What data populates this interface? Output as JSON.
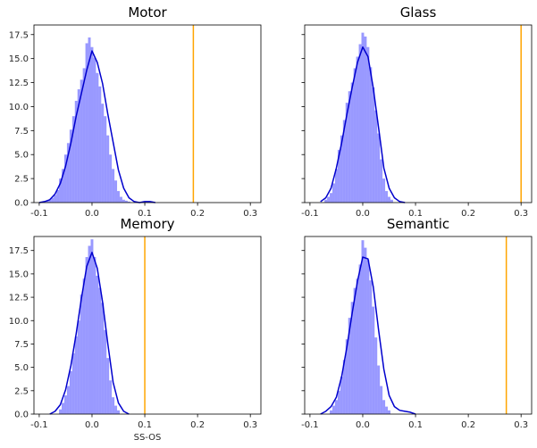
{
  "figure": {
    "colors": {
      "hist": "#0000ff",
      "kde": "#0000cd",
      "vline": "#ffa500"
    }
  },
  "chart_data": [
    {
      "type": "histogram+kde",
      "title": "Motor",
      "xlabel": "",
      "xlim": [
        -0.11,
        0.32
      ],
      "ylim": [
        0,
        18.5
      ],
      "xticks": [
        -0.1,
        0.0,
        0.1,
        0.2,
        0.3
      ],
      "xtick_labels": [
        "-0.1",
        "0.0",
        "0.1",
        "0.2",
        "0.3"
      ],
      "yticks": [
        0,
        2.5,
        5.0,
        7.5,
        10.0,
        12.5,
        15.0,
        17.5
      ],
      "ytick_labels": [
        "0.0",
        "2.5",
        "5.0",
        "7.5",
        "10.0",
        "12.5",
        "15.0",
        "17.5"
      ],
      "show_ytick_labels": true,
      "vline": 0.192,
      "bin_edges": [
        -0.0875,
        -0.0825,
        -0.0775,
        -0.0725,
        -0.0675,
        -0.0625,
        -0.0575,
        -0.0525,
        -0.0475,
        -0.0425,
        -0.0375,
        -0.0325,
        -0.0275,
        -0.0225,
        -0.0175,
        -0.0125,
        -0.0075,
        -0.0025,
        0.0025,
        0.0075,
        0.0125,
        0.0175,
        0.0225,
        0.0275,
        0.0325,
        0.0375,
        0.0425,
        0.0475,
        0.0525,
        0.0575,
        0.0625,
        0.0675,
        0.0725
      ],
      "hist_values": [
        0.2,
        0.3,
        0.5,
        0.8,
        1.3,
        2.5,
        3.5,
        5.0,
        6.2,
        7.6,
        9.0,
        10.6,
        11.8,
        12.8,
        14.0,
        16.6,
        17.2,
        16.2,
        15.1,
        13.5,
        12.1,
        10.3,
        9.0,
        7.0,
        5.0,
        3.5,
        2.3,
        1.2,
        0.6,
        0.3,
        0.2,
        0.1
      ],
      "kde": {
        "x": [
          -0.1,
          -0.09,
          -0.08,
          -0.07,
          -0.06,
          -0.05,
          -0.04,
          -0.03,
          -0.02,
          -0.01,
          0.0,
          0.01,
          0.02,
          0.03,
          0.04,
          0.05,
          0.06,
          0.07,
          0.08,
          0.09,
          0.1,
          0.11,
          0.12
        ],
        "y": [
          0.0,
          0.1,
          0.3,
          0.9,
          2.0,
          3.8,
          6.2,
          9.0,
          11.4,
          13.8,
          15.8,
          14.6,
          12.4,
          9.2,
          6.3,
          3.4,
          1.5,
          0.5,
          0.1,
          0.0,
          0.1,
          0.1,
          0.0
        ]
      }
    },
    {
      "type": "histogram+kde",
      "title": "Glass",
      "xlabel": "",
      "xlim": [
        -0.11,
        0.32
      ],
      "ylim": [
        0,
        18.5
      ],
      "xticks": [
        -0.1,
        0.0,
        0.1,
        0.2,
        0.3
      ],
      "xtick_labels": [
        "-0.1",
        "0.0",
        "0.1",
        "0.2",
        "0.3"
      ],
      "yticks": [
        0,
        2.5,
        5.0,
        7.5,
        10.0,
        12.5,
        15.0,
        17.5
      ],
      "ytick_labels": [
        "0.0",
        "2.5",
        "5.0",
        "7.5",
        "10.0",
        "12.5",
        "15.0",
        "17.5"
      ],
      "show_ytick_labels": false,
      "vline": 0.3,
      "bin_edges": [
        -0.0725,
        -0.0675,
        -0.0625,
        -0.0575,
        -0.0525,
        -0.0475,
        -0.0425,
        -0.0375,
        -0.0325,
        -0.0275,
        -0.0225,
        -0.0175,
        -0.0125,
        -0.0075,
        -0.0025,
        0.0025,
        0.0075,
        0.0125,
        0.0175,
        0.0225,
        0.0275,
        0.0325,
        0.0375,
        0.0425,
        0.0475,
        0.0525,
        0.0575
      ],
      "hist_values": [
        0.3,
        0.6,
        1.0,
        2.0,
        3.5,
        5.5,
        7.0,
        8.6,
        10.4,
        11.6,
        12.5,
        14.0,
        15.2,
        16.5,
        17.7,
        17.3,
        16.2,
        14.1,
        12.0,
        9.6,
        7.2,
        4.5,
        2.5,
        1.2,
        0.6,
        0.3
      ],
      "kde": {
        "x": [
          -0.08,
          -0.07,
          -0.06,
          -0.05,
          -0.04,
          -0.03,
          -0.02,
          -0.01,
          0.0,
          0.01,
          0.02,
          0.03,
          0.04,
          0.05,
          0.06,
          0.07,
          0.08
        ],
        "y": [
          0.1,
          0.5,
          1.5,
          3.6,
          6.2,
          9.2,
          12.0,
          14.6,
          16.2,
          15.2,
          11.9,
          7.8,
          3.6,
          1.5,
          0.5,
          0.1,
          0.0
        ]
      }
    },
    {
      "type": "histogram+kde",
      "title": "Memory",
      "xlabel": "SS-OS",
      "xlim": [
        -0.11,
        0.32
      ],
      "ylim": [
        0,
        19.0
      ],
      "xticks": [
        -0.1,
        0.0,
        0.1,
        0.2,
        0.3
      ],
      "xtick_labels": [
        "-0.1",
        "0.0",
        "0.1",
        "0.2",
        "0.3"
      ],
      "yticks": [
        0,
        2.5,
        5.0,
        7.5,
        10.0,
        12.5,
        15.0,
        17.5
      ],
      "ytick_labels": [
        "0.0",
        "2.5",
        "5.0",
        "7.5",
        "10.0",
        "12.5",
        "15.0",
        "17.5"
      ],
      "show_ytick_labels": true,
      "vline": 0.1,
      "bin_edges": [
        -0.0625,
        -0.0575,
        -0.0525,
        -0.0475,
        -0.0425,
        -0.0375,
        -0.0325,
        -0.0275,
        -0.0225,
        -0.0175,
        -0.0125,
        -0.0075,
        -0.0025,
        0.0025,
        0.0075,
        0.0125,
        0.0175,
        0.0225,
        0.0275,
        0.0325,
        0.0375,
        0.0425,
        0.0475,
        0.0525
      ],
      "hist_values": [
        0.5,
        1.2,
        2.0,
        3.0,
        4.6,
        6.5,
        8.3,
        10.0,
        12.8,
        14.5,
        16.8,
        18.0,
        18.7,
        16.8,
        14.8,
        13.5,
        11.9,
        9.0,
        6.0,
        3.6,
        1.8,
        0.9,
        0.4
      ],
      "kde": {
        "x": [
          -0.08,
          -0.07,
          -0.06,
          -0.05,
          -0.04,
          -0.03,
          -0.02,
          -0.01,
          0.0,
          0.01,
          0.02,
          0.03,
          0.04,
          0.05,
          0.06,
          0.07
        ],
        "y": [
          0.0,
          0.3,
          1.0,
          2.6,
          5.2,
          8.6,
          12.4,
          15.8,
          17.3,
          15.6,
          12.0,
          7.5,
          3.4,
          1.2,
          0.3,
          0.0
        ]
      }
    },
    {
      "type": "histogram+kde",
      "title": "Semantic",
      "xlabel": "",
      "xlim": [
        -0.11,
        0.32
      ],
      "ylim": [
        0,
        19.0
      ],
      "xticks": [
        -0.1,
        0.0,
        0.1,
        0.2,
        0.3
      ],
      "xtick_labels": [
        "-0.1",
        "0.0",
        "0.1",
        "0.2",
        "0.3"
      ],
      "yticks": [
        0,
        2.5,
        5.0,
        7.5,
        10.0,
        12.5,
        15.0,
        17.5
      ],
      "ytick_labels": [
        "0.0",
        "2.5",
        "5.0",
        "7.5",
        "10.0",
        "12.5",
        "15.0",
        "17.5"
      ],
      "show_ytick_labels": false,
      "vline": 0.272,
      "bin_edges": [
        -0.0625,
        -0.0575,
        -0.0525,
        -0.0475,
        -0.0425,
        -0.0375,
        -0.0325,
        -0.0275,
        -0.0225,
        -0.0175,
        -0.0125,
        -0.0075,
        -0.0025,
        0.0025,
        0.0075,
        0.0125,
        0.0175,
        0.0225,
        0.0275,
        0.0325,
        0.0375,
        0.0425,
        0.0475,
        0.0525
      ],
      "hist_values": [
        0.4,
        0.9,
        1.5,
        2.5,
        4.0,
        5.8,
        8.0,
        10.3,
        12.0,
        13.5,
        14.5,
        16.0,
        18.6,
        17.8,
        16.5,
        14.3,
        11.5,
        8.2,
        5.2,
        3.0,
        1.5,
        0.8,
        0.4
      ],
      "kde": {
        "x": [
          -0.08,
          -0.07,
          -0.06,
          -0.05,
          -0.04,
          -0.03,
          -0.02,
          -0.01,
          0.0,
          0.01,
          0.02,
          0.03,
          0.04,
          0.05,
          0.06,
          0.07,
          0.08,
          0.09,
          0.1
        ],
        "y": [
          0.0,
          0.3,
          0.8,
          1.8,
          4.0,
          7.2,
          10.8,
          14.2,
          16.8,
          16.6,
          13.6,
          9.0,
          4.8,
          2.0,
          0.8,
          0.4,
          0.3,
          0.2,
          0.0
        ]
      }
    }
  ]
}
